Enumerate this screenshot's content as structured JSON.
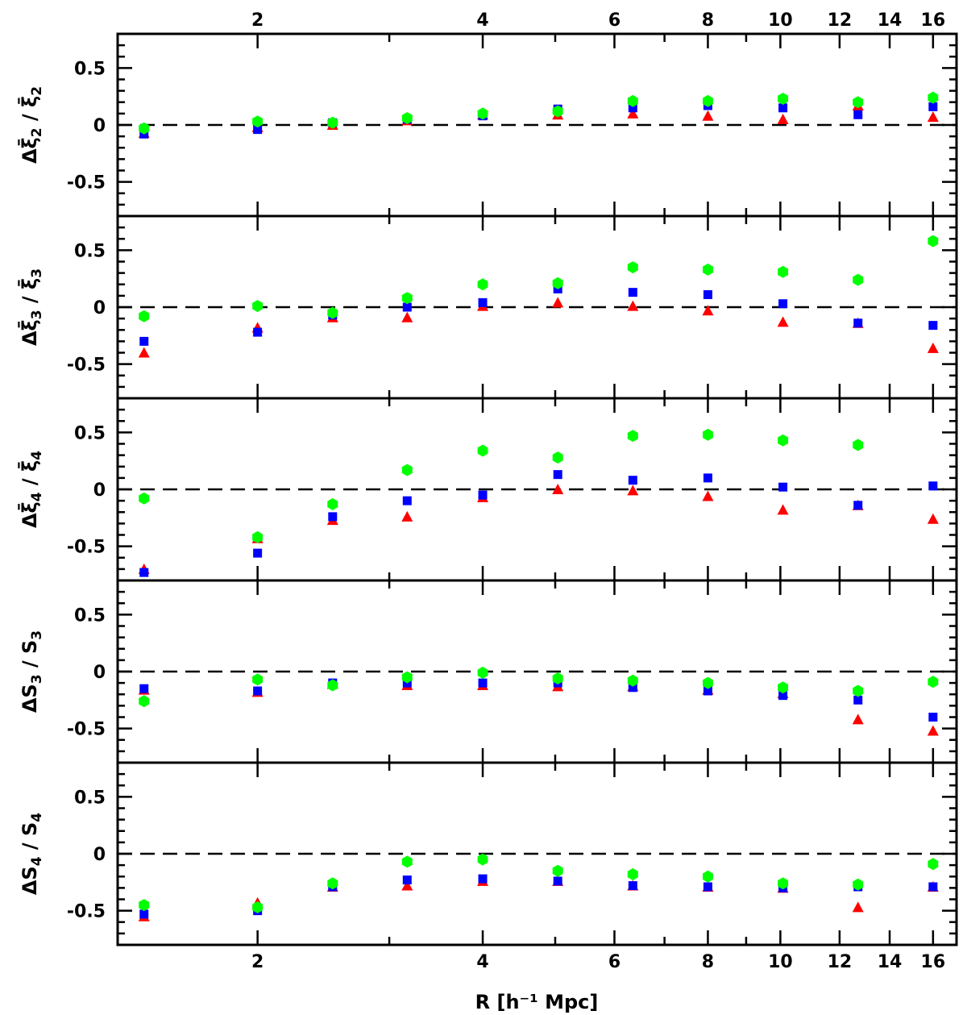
{
  "chart_data": {
    "type": "scatter",
    "xscale": "log",
    "xlim": [
      1.3,
      17.2
    ],
    "ylim": [
      -0.8,
      0.8
    ],
    "x_tick_labels": [
      "2",
      "4",
      "6",
      "8",
      "10",
      "12",
      "14",
      "16"
    ],
    "x_ticks": [
      2,
      4,
      6,
      8,
      10,
      12,
      14,
      16
    ],
    "x_minor_ticks": [
      3,
      5,
      7,
      9
    ],
    "y_tick_labels": [
      "0.5",
      "0",
      "-0.5"
    ],
    "y_ticks": [
      0.5,
      0,
      -0.5
    ],
    "xlabel": "R [h⁻¹ Mpc]",
    "reference_line": {
      "y": 0,
      "style": "dashed"
    },
    "x": [
      1.41,
      2.0,
      2.52,
      3.17,
      4.0,
      5.04,
      6.35,
      8.0,
      10.08,
      12.7,
      16.0
    ],
    "panels": [
      {
        "ylabel": {
          "num_base": "Δξ̄",
          "num_sub": "2",
          "den_base": "ξ̄",
          "den_sub": "2"
        },
        "series": [
          {
            "marker": "triangle",
            "color": "#ff0000",
            "values": [
              -0.07,
              -0.02,
              0.0,
              0.04,
              0.09,
              0.09,
              0.1,
              0.08,
              0.05,
              0.17,
              0.07
            ]
          },
          {
            "marker": "square",
            "color": "#0000ff",
            "values": [
              -0.08,
              -0.04,
              0.02,
              0.05,
              0.08,
              0.14,
              0.15,
              0.17,
              0.15,
              0.09,
              0.16
            ]
          },
          {
            "marker": "hexagon",
            "color": "#00ff00",
            "values": [
              -0.03,
              0.03,
              0.02,
              0.06,
              0.1,
              0.12,
              0.21,
              0.21,
              0.23,
              0.2,
              0.24
            ]
          }
        ]
      },
      {
        "ylabel": {
          "num_base": "Δξ̄",
          "num_sub": "3",
          "den_base": "ξ̄",
          "den_sub": "3"
        },
        "series": [
          {
            "marker": "triangle",
            "color": "#ff0000",
            "values": [
              -0.4,
              -0.18,
              -0.09,
              -0.09,
              0.01,
              0.04,
              0.01,
              -0.03,
              -0.13,
              -0.14,
              -0.36
            ]
          },
          {
            "marker": "square",
            "color": "#0000ff",
            "values": [
              -0.3,
              -0.22,
              -0.07,
              0.0,
              0.04,
              0.16,
              0.13,
              0.11,
              0.03,
              -0.14,
              -0.16
            ]
          },
          {
            "marker": "hexagon",
            "color": "#00ff00",
            "values": [
              -0.08,
              0.01,
              -0.05,
              0.08,
              0.2,
              0.21,
              0.35,
              0.33,
              0.31,
              0.24,
              0.58
            ]
          }
        ]
      },
      {
        "ylabel": {
          "num_base": "Δξ̄",
          "num_sub": "4",
          "den_base": "ξ̄",
          "den_sub": "4"
        },
        "series": [
          {
            "marker": "triangle",
            "color": "#ff0000",
            "values": [
              -0.7,
              -0.43,
              -0.27,
              -0.24,
              -0.07,
              0.0,
              -0.01,
              -0.06,
              -0.18,
              -0.14,
              -0.26
            ]
          },
          {
            "marker": "square",
            "color": "#0000ff",
            "values": [
              -0.73,
              -0.56,
              -0.24,
              -0.1,
              -0.05,
              0.13,
              0.08,
              0.1,
              0.02,
              -0.14,
              0.03
            ]
          },
          {
            "marker": "hexagon",
            "color": "#00ff00",
            "values": [
              -0.08,
              -0.42,
              -0.13,
              0.17,
              0.34,
              0.28,
              0.47,
              0.48,
              0.43,
              0.39,
              null
            ]
          }
        ]
      },
      {
        "ylabel": {
          "num_base": "ΔS",
          "num_sub": "3",
          "den_base": "S",
          "den_sub": "3"
        },
        "series": [
          {
            "marker": "triangle",
            "color": "#ff0000",
            "values": [
              -0.16,
              -0.18,
              -0.11,
              -0.12,
              -0.12,
              -0.13,
              -0.13,
              -0.16,
              -0.19,
              -0.42,
              -0.52
            ]
          },
          {
            "marker": "square",
            "color": "#0000ff",
            "values": [
              -0.15,
              -0.17,
              -0.1,
              -0.1,
              -0.1,
              -0.1,
              -0.14,
              -0.17,
              -0.21,
              -0.25,
              -0.4
            ]
          },
          {
            "marker": "hexagon",
            "color": "#00ff00",
            "values": [
              -0.26,
              -0.07,
              -0.12,
              -0.05,
              -0.01,
              -0.06,
              -0.08,
              -0.1,
              -0.14,
              -0.17,
              -0.09
            ]
          }
        ]
      },
      {
        "ylabel": {
          "num_base": "ΔS",
          "num_sub": "4",
          "den_base": "S",
          "den_sub": "4"
        },
        "series": [
          {
            "marker": "triangle",
            "color": "#ff0000",
            "values": [
              -0.55,
              -0.43,
              -0.29,
              -0.28,
              -0.24,
              -0.24,
              -0.28,
              -0.29,
              -0.3,
              -0.47,
              -0.29
            ]
          },
          {
            "marker": "square",
            "color": "#0000ff",
            "values": [
              -0.53,
              -0.5,
              -0.29,
              -0.23,
              -0.22,
              -0.24,
              -0.28,
              -0.29,
              -0.3,
              -0.29,
              -0.29
            ]
          },
          {
            "marker": "hexagon",
            "color": "#00ff00",
            "values": [
              -0.45,
              -0.47,
              -0.26,
              -0.07,
              -0.05,
              -0.15,
              -0.18,
              -0.2,
              -0.26,
              -0.27,
              -0.09
            ]
          }
        ]
      }
    ]
  }
}
